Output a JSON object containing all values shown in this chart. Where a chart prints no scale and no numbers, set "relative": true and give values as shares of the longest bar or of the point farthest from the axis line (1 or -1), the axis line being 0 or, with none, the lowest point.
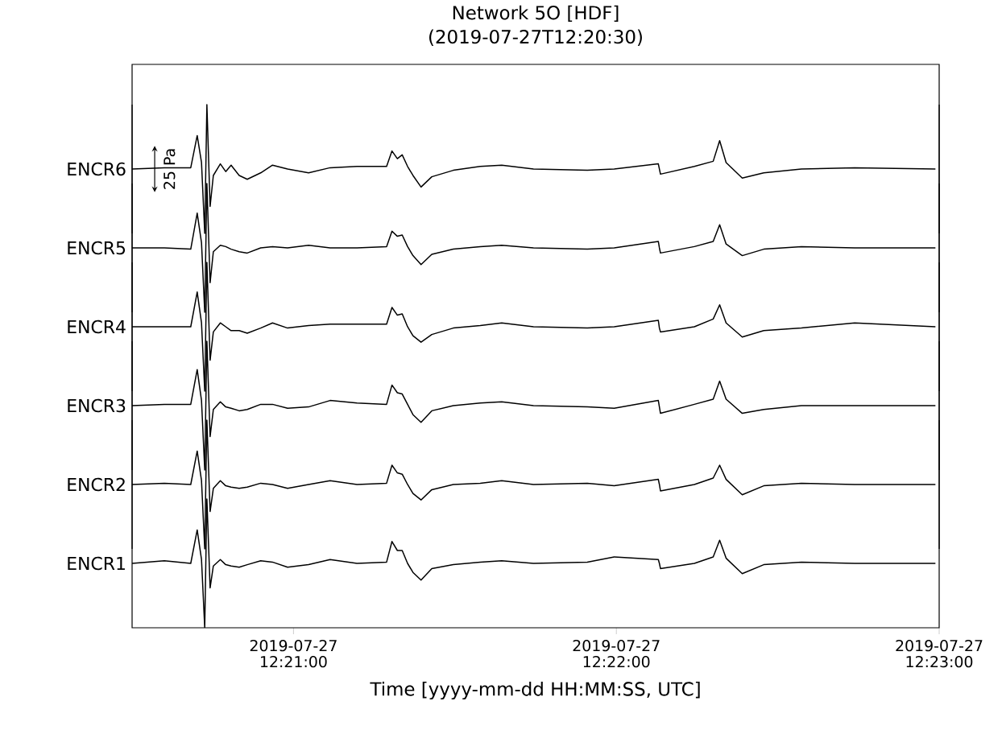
{
  "chart_data": [
    {
      "type": "line",
      "relative": true,
      "title": "Network 5O [HDF]",
      "subtitle": "(2019-07-27T12:20:30)",
      "ylabel": "ENCR6",
      "annotations": [
        "25 Pa"
      ],
      "xlim": [
        "2019-07-27T12:20:30",
        "2019-07-27T12:23:00"
      ],
      "x": [
        "2019-07-27T12:20:30.0",
        "2019-07-27T12:20:36.0",
        "2019-07-27T12:20:40.9",
        "2019-07-27T12:20:42.1",
        "2019-07-27T12:20:42.9",
        "2019-07-27T12:20:43.5",
        "2019-07-27T12:20:43.9",
        "2019-07-27T12:20:44.5",
        "2019-07-27T12:20:45.1",
        "2019-07-27T12:20:46.4",
        "2019-07-27T12:20:47.4",
        "2019-07-27T12:20:48.4",
        "2019-07-27T12:20:49.9",
        "2019-07-27T12:20:51.4",
        "2019-07-27T12:20:53.9",
        "2019-07-27T12:20:56.1",
        "2019-07-27T12:20:58.9",
        "2019-07-27T12:21:02.8",
        "2019-07-27T12:21:06.8",
        "2019-07-27T12:21:11.8",
        "2019-07-27T12:21:17.3",
        "2019-07-27T12:21:18.3",
        "2019-07-27T12:21:19.3",
        "2019-07-27T12:21:20.2",
        "2019-07-27T12:21:21.2",
        "2019-07-27T12:21:22.2",
        "2019-07-27T12:21:23.7",
        "2019-07-27T12:21:25.7",
        "2019-07-27T12:21:29.7",
        "2019-07-27T12:21:34.7",
        "2019-07-27T12:21:38.7",
        "2019-07-27T12:21:44.6",
        "2019-07-27T12:21:54.6",
        "2019-07-27T12:21:59.6",
        "2019-07-27T12:22:07.8",
        "2019-07-27T12:22:08.0",
        "2019-07-27T12:22:08.2",
        "2019-07-27T12:22:14.5",
        "2019-07-27T12:22:18.0",
        "2019-07-27T12:22:19.2",
        "2019-07-27T12:22:20.4",
        "2019-07-27T12:22:23.4",
        "2019-07-27T12:22:27.4",
        "2019-07-27T12:22:34.4",
        "2019-07-27T12:22:44.3",
        "2019-07-27T12:22:59.3"
      ],
      "series": [
        {
          "color": "#000000",
          "values": [
            0.5,
            0.51,
            0.51,
            0.76,
            0.55,
            0,
            1,
            0.21,
            0.45,
            0.54,
            0.48,
            0.53,
            0.45,
            0.42,
            0.47,
            0.53,
            0.5,
            0.47,
            0.51,
            0.52,
            0.52,
            0.64,
            0.58,
            0.61,
            0.52,
            0.45,
            0.36,
            0.44,
            0.49,
            0.52,
            0.53,
            0.5,
            0.49,
            0.5,
            0.54,
            0.5,
            0.46,
            0.52,
            0.56,
            0.72,
            0.55,
            0.43,
            0.47,
            0.5,
            0.51,
            0.5
          ]
        }
      ]
    },
    {
      "type": "line",
      "relative": true,
      "ylabel": "ENCR5",
      "xlim": [
        "2019-07-27T12:20:30",
        "2019-07-27T12:23:00"
      ],
      "x": [
        "2019-07-27T12:20:30.0",
        "2019-07-27T12:20:36.0",
        "2019-07-27T12:20:40.9",
        "2019-07-27T12:20:42.1",
        "2019-07-27T12:20:42.9",
        "2019-07-27T12:20:43.5",
        "2019-07-27T12:20:43.9",
        "2019-07-27T12:20:44.5",
        "2019-07-27T12:20:45.1",
        "2019-07-27T12:20:46.4",
        "2019-07-27T12:20:47.4",
        "2019-07-27T12:20:48.4",
        "2019-07-27T12:20:49.9",
        "2019-07-27T12:20:51.4",
        "2019-07-27T12:20:53.9",
        "2019-07-27T12:20:56.1",
        "2019-07-27T12:20:58.9",
        "2019-07-27T12:21:02.8",
        "2019-07-27T12:21:06.8",
        "2019-07-27T12:21:11.8",
        "2019-07-27T12:21:17.3",
        "2019-07-27T12:21:18.3",
        "2019-07-27T12:21:19.3",
        "2019-07-27T12:21:20.2",
        "2019-07-27T12:21:21.2",
        "2019-07-27T12:21:22.2",
        "2019-07-27T12:21:23.7",
        "2019-07-27T12:21:25.7",
        "2019-07-27T12:21:29.7",
        "2019-07-27T12:21:34.7",
        "2019-07-27T12:21:38.7",
        "2019-07-27T12:21:44.6",
        "2019-07-27T12:21:54.6",
        "2019-07-27T12:21:59.6",
        "2019-07-27T12:22:07.8",
        "2019-07-27T12:22:08.0",
        "2019-07-27T12:22:08.2",
        "2019-07-27T12:22:14.5",
        "2019-07-27T12:22:18.0",
        "2019-07-27T12:22:19.2",
        "2019-07-27T12:22:20.4",
        "2019-07-27T12:22:23.4",
        "2019-07-27T12:22:27.4",
        "2019-07-27T12:22:34.4",
        "2019-07-27T12:22:44.3",
        "2019-07-27T12:22:59.3"
      ],
      "series": [
        {
          "color": "#000000",
          "values": [
            0.5,
            0.5,
            0.49,
            0.77,
            0.54,
            0,
            1,
            0.23,
            0.47,
            0.52,
            0.51,
            0.49,
            0.47,
            0.46,
            0.5,
            0.51,
            0.5,
            0.52,
            0.5,
            0.5,
            0.51,
            0.63,
            0.59,
            0.6,
            0.51,
            0.44,
            0.37,
            0.45,
            0.49,
            0.51,
            0.52,
            0.5,
            0.49,
            0.5,
            0.55,
            0.5,
            0.46,
            0.51,
            0.55,
            0.68,
            0.53,
            0.44,
            0.49,
            0.51,
            0.5,
            0.5
          ]
        }
      ]
    },
    {
      "type": "line",
      "relative": true,
      "ylabel": "ENCR4",
      "xlim": [
        "2019-07-27T12:20:30",
        "2019-07-27T12:23:00"
      ],
      "x": [
        "2019-07-27T12:20:30.0",
        "2019-07-27T12:20:36.0",
        "2019-07-27T12:20:40.9",
        "2019-07-27T12:20:42.1",
        "2019-07-27T12:20:42.9",
        "2019-07-27T12:20:43.5",
        "2019-07-27T12:20:43.9",
        "2019-07-27T12:20:44.5",
        "2019-07-27T12:20:45.1",
        "2019-07-27T12:20:46.4",
        "2019-07-27T12:20:47.4",
        "2019-07-27T12:20:48.4",
        "2019-07-27T12:20:49.9",
        "2019-07-27T12:20:51.4",
        "2019-07-27T12:20:53.9",
        "2019-07-27T12:20:56.1",
        "2019-07-27T12:20:58.9",
        "2019-07-27T12:21:02.8",
        "2019-07-27T12:21:06.8",
        "2019-07-27T12:21:11.8",
        "2019-07-27T12:21:17.3",
        "2019-07-27T12:21:18.3",
        "2019-07-27T12:21:19.3",
        "2019-07-27T12:21:20.2",
        "2019-07-27T12:21:21.2",
        "2019-07-27T12:21:22.2",
        "2019-07-27T12:21:23.7",
        "2019-07-27T12:21:25.7",
        "2019-07-27T12:21:29.7",
        "2019-07-27T12:21:34.7",
        "2019-07-27T12:21:38.7",
        "2019-07-27T12:21:44.6",
        "2019-07-27T12:21:54.6",
        "2019-07-27T12:21:59.6",
        "2019-07-27T12:22:07.8",
        "2019-07-27T12:22:08.0",
        "2019-07-27T12:22:08.2",
        "2019-07-27T12:22:14.5",
        "2019-07-27T12:22:18.0",
        "2019-07-27T12:22:19.2",
        "2019-07-27T12:22:20.4",
        "2019-07-27T12:22:23.4",
        "2019-07-27T12:22:27.4",
        "2019-07-27T12:22:34.4",
        "2019-07-27T12:22:44.3",
        "2019-07-27T12:22:59.3"
      ],
      "series": [
        {
          "color": "#000000",
          "values": [
            0.5,
            0.5,
            0.5,
            0.77,
            0.53,
            0,
            1,
            0.24,
            0.46,
            0.53,
            0.5,
            0.47,
            0.47,
            0.45,
            0.49,
            0.53,
            0.49,
            0.51,
            0.52,
            0.52,
            0.52,
            0.65,
            0.59,
            0.6,
            0.5,
            0.43,
            0.38,
            0.44,
            0.49,
            0.51,
            0.53,
            0.5,
            0.49,
            0.5,
            0.55,
            0.49,
            0.46,
            0.5,
            0.56,
            0.67,
            0.53,
            0.42,
            0.47,
            0.49,
            0.53,
            0.5
          ]
        }
      ]
    },
    {
      "type": "line",
      "relative": true,
      "ylabel": "ENCR3",
      "xlim": [
        "2019-07-27T12:20:30",
        "2019-07-27T12:23:00"
      ],
      "x": [
        "2019-07-27T12:20:30.0",
        "2019-07-27T12:20:36.0",
        "2019-07-27T12:20:40.9",
        "2019-07-27T12:20:42.1",
        "2019-07-27T12:20:42.9",
        "2019-07-27T12:20:43.5",
        "2019-07-27T12:20:43.9",
        "2019-07-27T12:20:44.5",
        "2019-07-27T12:20:45.1",
        "2019-07-27T12:20:46.4",
        "2019-07-27T12:20:47.4",
        "2019-07-27T12:20:48.4",
        "2019-07-27T12:20:49.9",
        "2019-07-27T12:20:51.4",
        "2019-07-27T12:20:53.9",
        "2019-07-27T12:20:56.1",
        "2019-07-27T12:20:58.9",
        "2019-07-27T12:21:02.8",
        "2019-07-27T12:21:06.8",
        "2019-07-27T12:21:11.8",
        "2019-07-27T12:21:17.3",
        "2019-07-27T12:21:18.3",
        "2019-07-27T12:21:19.3",
        "2019-07-27T12:21:20.2",
        "2019-07-27T12:21:21.2",
        "2019-07-27T12:21:22.2",
        "2019-07-27T12:21:23.7",
        "2019-07-27T12:21:25.7",
        "2019-07-27T12:21:29.7",
        "2019-07-27T12:21:34.7",
        "2019-07-27T12:21:38.7",
        "2019-07-27T12:21:44.6",
        "2019-07-27T12:21:54.6",
        "2019-07-27T12:21:59.6",
        "2019-07-27T12:22:07.8",
        "2019-07-27T12:22:08.0",
        "2019-07-27T12:22:08.2",
        "2019-07-27T12:22:14.5",
        "2019-07-27T12:22:18.0",
        "2019-07-27T12:22:19.2",
        "2019-07-27T12:22:20.4",
        "2019-07-27T12:22:23.4",
        "2019-07-27T12:22:27.4",
        "2019-07-27T12:22:34.4",
        "2019-07-27T12:22:44.3",
        "2019-07-27T12:22:59.3"
      ],
      "series": [
        {
          "color": "#000000",
          "values": [
            0.5,
            0.51,
            0.51,
            0.78,
            0.54,
            0,
            1,
            0.26,
            0.47,
            0.53,
            0.49,
            0.48,
            0.46,
            0.47,
            0.51,
            0.51,
            0.48,
            0.49,
            0.54,
            0.52,
            0.51,
            0.66,
            0.6,
            0.59,
            0.51,
            0.43,
            0.37,
            0.46,
            0.5,
            0.52,
            0.53,
            0.5,
            0.49,
            0.48,
            0.54,
            0.49,
            0.44,
            0.51,
            0.55,
            0.69,
            0.55,
            0.44,
            0.47,
            0.5,
            0.5,
            0.5
          ]
        }
      ]
    },
    {
      "type": "line",
      "relative": true,
      "ylabel": "ENCR2",
      "xlim": [
        "2019-07-27T12:20:30",
        "2019-07-27T12:23:00"
      ],
      "x": [
        "2019-07-27T12:20:30.0",
        "2019-07-27T12:20:36.0",
        "2019-07-27T12:20:40.9",
        "2019-07-27T12:20:42.1",
        "2019-07-27T12:20:42.9",
        "2019-07-27T12:20:43.5",
        "2019-07-27T12:20:43.9",
        "2019-07-27T12:20:44.5",
        "2019-07-27T12:20:45.1",
        "2019-07-27T12:20:46.4",
        "2019-07-27T12:20:47.4",
        "2019-07-27T12:20:48.4",
        "2019-07-27T12:20:49.9",
        "2019-07-27T12:20:51.4",
        "2019-07-27T12:20:53.9",
        "2019-07-27T12:20:56.1",
        "2019-07-27T12:20:58.9",
        "2019-07-27T12:21:02.8",
        "2019-07-27T12:21:06.8",
        "2019-07-27T12:21:11.8",
        "2019-07-27T12:21:17.3",
        "2019-07-27T12:21:18.3",
        "2019-07-27T12:21:19.3",
        "2019-07-27T12:21:20.2",
        "2019-07-27T12:21:21.2",
        "2019-07-27T12:21:22.2",
        "2019-07-27T12:21:23.7",
        "2019-07-27T12:21:25.7",
        "2019-07-27T12:21:29.7",
        "2019-07-27T12:21:34.7",
        "2019-07-27T12:21:38.7",
        "2019-07-27T12:21:44.6",
        "2019-07-27T12:21:54.6",
        "2019-07-27T12:21:59.6",
        "2019-07-27T12:22:07.8",
        "2019-07-27T12:22:08.0",
        "2019-07-27T12:22:08.2",
        "2019-07-27T12:22:14.5",
        "2019-07-27T12:22:18.0",
        "2019-07-27T12:22:19.2",
        "2019-07-27T12:22:20.4",
        "2019-07-27T12:22:23.4",
        "2019-07-27T12:22:27.4",
        "2019-07-27T12:22:34.4",
        "2019-07-27T12:22:44.3",
        "2019-07-27T12:22:59.3"
      ],
      "series": [
        {
          "color": "#000000",
          "values": [
            0.5,
            0.51,
            0.5,
            0.76,
            0.53,
            0,
            1,
            0.29,
            0.47,
            0.53,
            0.49,
            0.48,
            0.47,
            0.48,
            0.51,
            0.5,
            0.47,
            0.5,
            0.53,
            0.5,
            0.51,
            0.65,
            0.59,
            0.58,
            0.5,
            0.43,
            0.38,
            0.46,
            0.5,
            0.51,
            0.53,
            0.5,
            0.51,
            0.49,
            0.54,
            0.5,
            0.45,
            0.5,
            0.55,
            0.65,
            0.54,
            0.42,
            0.49,
            0.51,
            0.5,
            0.5
          ]
        }
      ]
    },
    {
      "type": "line",
      "relative": true,
      "ylabel": "ENCR1",
      "xlabel": "Time [yyyy-mm-dd HH:MM:SS, UTC]",
      "xlim": [
        "2019-07-27T12:20:30",
        "2019-07-27T12:23:00"
      ],
      "xticks": [
        {
          "value": "2019-07-27T12:21:00",
          "label": "2019-07-27 12:21:00"
        },
        {
          "value": "2019-07-27T12:22:00",
          "label": "2019-07-27 12:22:00"
        },
        {
          "value": "2019-07-27T12:23:00",
          "label": "2019-07-27 12:23:00"
        }
      ],
      "x": [
        "2019-07-27T12:20:30.0",
        "2019-07-27T12:20:36.0",
        "2019-07-27T12:20:40.9",
        "2019-07-27T12:20:42.1",
        "2019-07-27T12:20:42.9",
        "2019-07-27T12:20:43.5",
        "2019-07-27T12:20:43.9",
        "2019-07-27T12:20:44.5",
        "2019-07-27T12:20:45.1",
        "2019-07-27T12:20:46.4",
        "2019-07-27T12:20:47.4",
        "2019-07-27T12:20:48.4",
        "2019-07-27T12:20:49.9",
        "2019-07-27T12:20:51.4",
        "2019-07-27T12:20:53.9",
        "2019-07-27T12:20:56.1",
        "2019-07-27T12:20:58.9",
        "2019-07-27T12:21:02.8",
        "2019-07-27T12:21:06.8",
        "2019-07-27T12:21:11.8",
        "2019-07-27T12:21:17.3",
        "2019-07-27T12:21:18.3",
        "2019-07-27T12:21:19.3",
        "2019-07-27T12:21:20.2",
        "2019-07-27T12:21:21.2",
        "2019-07-27T12:21:22.2",
        "2019-07-27T12:21:23.7",
        "2019-07-27T12:21:25.7",
        "2019-07-27T12:21:29.7",
        "2019-07-27T12:21:34.7",
        "2019-07-27T12:21:38.7",
        "2019-07-27T12:21:44.6",
        "2019-07-27T12:21:54.6",
        "2019-07-27T12:21:59.6",
        "2019-07-27T12:22:07.8",
        "2019-07-27T12:22:08.0",
        "2019-07-27T12:22:08.2",
        "2019-07-27T12:22:14.5",
        "2019-07-27T12:22:18.0",
        "2019-07-27T12:22:19.2",
        "2019-07-27T12:22:20.4",
        "2019-07-27T12:22:23.4",
        "2019-07-27T12:22:27.4",
        "2019-07-27T12:22:34.4",
        "2019-07-27T12:22:44.3",
        "2019-07-27T12:22:59.3"
      ],
      "series": [
        {
          "color": "#000000",
          "values": [
            0.5,
            0.52,
            0.5,
            0.76,
            0.53,
            0,
            1,
            0.31,
            0.48,
            0.53,
            0.49,
            0.48,
            0.47,
            0.49,
            0.52,
            0.51,
            0.47,
            0.49,
            0.53,
            0.5,
            0.51,
            0.67,
            0.6,
            0.6,
            0.5,
            0.43,
            0.37,
            0.46,
            0.49,
            0.51,
            0.52,
            0.5,
            0.51,
            0.55,
            0.53,
            0.5,
            0.46,
            0.5,
            0.55,
            0.68,
            0.54,
            0.42,
            0.49,
            0.51,
            0.5,
            0.5
          ]
        }
      ]
    }
  ]
}
